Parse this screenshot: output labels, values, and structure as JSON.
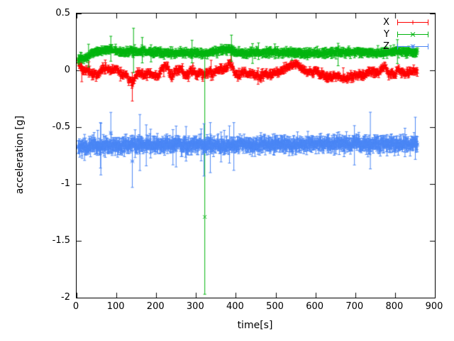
{
  "chart_data": {
    "type": "scatter",
    "style": "points-with-yerrorbars",
    "title": "",
    "xlabel": "time[s]",
    "ylabel": "acceleration [g]",
    "xlim": [
      0,
      900
    ],
    "ylim": [
      -2,
      0.5
    ],
    "xticks": [
      0,
      100,
      200,
      300,
      400,
      500,
      600,
      700,
      800,
      900
    ],
    "yticks": [
      -2,
      -1.5,
      -1,
      -0.5,
      0,
      0.5
    ],
    "grid": false,
    "legend": {
      "position": "top-right",
      "entries": [
        {
          "label": "X",
          "color": "#ff0000",
          "marker": "plus"
        },
        {
          "label": "Y",
          "color": "#00b40e",
          "marker": "cross"
        },
        {
          "label": "Z",
          "color": "#4a86f5",
          "marker": "asterisk"
        }
      ]
    },
    "series": [
      {
        "name": "X",
        "color": "#ff0000",
        "marker": "plus",
        "x_range": [
          4,
          856
        ],
        "x_step": 1,
        "seed": 11,
        "noise": 0.03,
        "err": 0.02,
        "spike_prob": 0.01,
        "spike_mul": 2,
        "trend": [
          [
            4,
            0.08
          ],
          [
            10,
            0.04
          ],
          [
            18,
            0.0
          ],
          [
            30,
            -0.01
          ],
          [
            45,
            -0.03
          ],
          [
            55,
            -0.04
          ],
          [
            65,
            0.02
          ],
          [
            75,
            0.03
          ],
          [
            85,
            0.0
          ],
          [
            95,
            0.02
          ],
          [
            105,
            0.0
          ],
          [
            115,
            -0.03
          ],
          [
            125,
            -0.04
          ],
          [
            135,
            -0.1
          ],
          [
            142,
            -0.11
          ],
          [
            150,
            -0.03
          ],
          [
            160,
            -0.02
          ],
          [
            172,
            -0.05
          ],
          [
            180,
            -0.03
          ],
          [
            190,
            -0.04
          ],
          [
            200,
            -0.06
          ],
          [
            210,
            -0.02
          ],
          [
            218,
            0.03
          ],
          [
            228,
            0.04
          ],
          [
            238,
            -0.06
          ],
          [
            246,
            -0.02
          ],
          [
            255,
            0.0
          ],
          [
            263,
            0.02
          ],
          [
            272,
            -0.05
          ],
          [
            282,
            -0.03
          ],
          [
            292,
            0.0
          ],
          [
            302,
            -0.04
          ],
          [
            312,
            -0.02
          ],
          [
            322,
            -0.04
          ],
          [
            332,
            -0.01
          ],
          [
            342,
            -0.03
          ],
          [
            352,
            0.0
          ],
          [
            362,
            0.02
          ],
          [
            372,
            0.0
          ],
          [
            383,
            0.05
          ],
          [
            390,
            0.06
          ],
          [
            398,
            -0.03
          ],
          [
            408,
            -0.04
          ],
          [
            418,
            -0.02
          ],
          [
            428,
            -0.03
          ],
          [
            438,
            -0.02
          ],
          [
            448,
            -0.04
          ],
          [
            458,
            -0.05
          ],
          [
            470,
            -0.04
          ],
          [
            482,
            -0.04
          ],
          [
            494,
            -0.03
          ],
          [
            506,
            -0.02
          ],
          [
            515,
            0.0
          ],
          [
            528,
            0.02
          ],
          [
            540,
            0.05
          ],
          [
            552,
            0.06
          ],
          [
            562,
            0.03
          ],
          [
            572,
            0.0
          ],
          [
            582,
            -0.01
          ],
          [
            592,
            -0.02
          ],
          [
            602,
            0.0
          ],
          [
            612,
            -0.03
          ],
          [
            625,
            -0.06
          ],
          [
            638,
            -0.06
          ],
          [
            650,
            -0.05
          ],
          [
            662,
            -0.06
          ],
          [
            675,
            -0.07
          ],
          [
            688,
            -0.06
          ],
          [
            700,
            -0.05
          ],
          [
            712,
            -0.04
          ],
          [
            724,
            -0.03
          ],
          [
            736,
            -0.01
          ],
          [
            748,
            -0.02
          ],
          [
            758,
            -0.03
          ],
          [
            768,
            0.02
          ],
          [
            776,
            0.03
          ],
          [
            784,
            -0.04
          ],
          [
            792,
            -0.02
          ],
          [
            800,
            -0.05
          ],
          [
            808,
            0.01
          ],
          [
            816,
            -0.01
          ],
          [
            828,
            -0.02
          ],
          [
            840,
            -0.01
          ],
          [
            856,
            -0.01
          ]
        ],
        "outliers": [
          {
            "x": 140,
            "y": -0.11,
            "lo": -0.27,
            "hi": -0.02
          },
          {
            "x": 13,
            "y": 0.02,
            "lo": -0.1,
            "hi": 0.1
          },
          {
            "x": 388,
            "y": 0.08,
            "lo": 0.0,
            "hi": 0.17
          }
        ]
      },
      {
        "name": "Y",
        "color": "#00b40e",
        "marker": "cross",
        "x_range": [
          4,
          856
        ],
        "x_step": 1,
        "seed": 23,
        "noise": 0.022,
        "err": 0.025,
        "spike_prob": 0.008,
        "spike_mul": 2,
        "trend": [
          [
            4,
            0.1
          ],
          [
            14,
            0.1
          ],
          [
            24,
            0.11
          ],
          [
            34,
            0.14
          ],
          [
            44,
            0.16
          ],
          [
            60,
            0.17
          ],
          [
            75,
            0.18
          ],
          [
            90,
            0.18
          ],
          [
            105,
            0.17
          ],
          [
            120,
            0.16
          ],
          [
            135,
            0.17
          ],
          [
            150,
            0.16
          ],
          [
            165,
            0.17
          ],
          [
            180,
            0.16
          ],
          [
            200,
            0.16
          ],
          [
            220,
            0.155
          ],
          [
            240,
            0.15
          ],
          [
            260,
            0.155
          ],
          [
            280,
            0.16
          ],
          [
            300,
            0.15
          ],
          [
            320,
            0.155
          ],
          [
            340,
            0.165
          ],
          [
            360,
            0.175
          ],
          [
            380,
            0.185
          ],
          [
            392,
            0.18
          ],
          [
            402,
            0.16
          ],
          [
            420,
            0.15
          ],
          [
            440,
            0.155
          ],
          [
            460,
            0.16
          ],
          [
            480,
            0.155
          ],
          [
            500,
            0.16
          ],
          [
            520,
            0.158
          ],
          [
            540,
            0.155
          ],
          [
            560,
            0.152
          ],
          [
            580,
            0.15
          ],
          [
            600,
            0.15
          ],
          [
            620,
            0.152
          ],
          [
            640,
            0.155
          ],
          [
            660,
            0.158
          ],
          [
            680,
            0.16
          ],
          [
            700,
            0.158
          ],
          [
            720,
            0.155
          ],
          [
            740,
            0.152
          ],
          [
            760,
            0.15
          ],
          [
            780,
            0.155
          ],
          [
            800,
            0.165
          ],
          [
            812,
            0.17
          ],
          [
            824,
            0.16
          ],
          [
            840,
            0.158
          ],
          [
            856,
            0.158
          ]
        ],
        "outliers": [
          {
            "x": 322,
            "y": -1.29,
            "lo": -1.97,
            "hi": 0.16
          },
          {
            "x": 143,
            "y": 0.18,
            "lo": -0.02,
            "hi": 0.37
          },
          {
            "x": 86,
            "y": 0.2,
            "lo": 0.08,
            "hi": 0.3
          },
          {
            "x": 389,
            "y": 0.2,
            "lo": 0.08,
            "hi": 0.31
          },
          {
            "x": 30,
            "y": 0.13,
            "lo": 0.03,
            "hi": 0.23
          },
          {
            "x": 806,
            "y": 0.17,
            "lo": 0.06,
            "hi": 0.27
          }
        ]
      },
      {
        "name": "Z",
        "color": "#4a86f5",
        "marker": "asterisk",
        "x_range": [
          4,
          856
        ],
        "x_step": 1,
        "seed": 37,
        "noise": 0.045,
        "err": 0.045,
        "spike_prob": 0.02,
        "spike_mul": 2.5,
        "trend": [
          [
            4,
            -0.68
          ],
          [
            20,
            -0.67
          ],
          [
            40,
            -0.66
          ],
          [
            60,
            -0.665
          ],
          [
            80,
            -0.67
          ],
          [
            100,
            -0.665
          ],
          [
            120,
            -0.66
          ],
          [
            140,
            -0.655
          ],
          [
            160,
            -0.65
          ],
          [
            180,
            -0.655
          ],
          [
            200,
            -0.66
          ],
          [
            220,
            -0.655
          ],
          [
            240,
            -0.65
          ],
          [
            260,
            -0.655
          ],
          [
            280,
            -0.66
          ],
          [
            300,
            -0.655
          ],
          [
            320,
            -0.65
          ],
          [
            340,
            -0.655
          ],
          [
            360,
            -0.65
          ],
          [
            380,
            -0.66
          ],
          [
            400,
            -0.658
          ],
          [
            420,
            -0.655
          ],
          [
            440,
            -0.652
          ],
          [
            460,
            -0.65
          ],
          [
            480,
            -0.653
          ],
          [
            500,
            -0.65
          ],
          [
            520,
            -0.653
          ],
          [
            540,
            -0.655
          ],
          [
            560,
            -0.652
          ],
          [
            580,
            -0.65
          ],
          [
            600,
            -0.648
          ],
          [
            620,
            -0.65
          ],
          [
            640,
            -0.648
          ],
          [
            660,
            -0.65
          ],
          [
            680,
            -0.649
          ],
          [
            700,
            -0.65
          ],
          [
            720,
            -0.647
          ],
          [
            740,
            -0.645
          ],
          [
            760,
            -0.648
          ],
          [
            780,
            -0.65
          ],
          [
            800,
            -0.647
          ],
          [
            820,
            -0.645
          ],
          [
            840,
            -0.646
          ],
          [
            856,
            -0.645
          ]
        ],
        "outliers": [
          {
            "x": 86,
            "y": -0.55,
            "lo": -0.73,
            "hi": -0.37
          },
          {
            "x": 140,
            "y": -0.8,
            "lo": -1.03,
            "hi": -0.57
          },
          {
            "x": 60,
            "y": -0.66,
            "lo": -0.86,
            "hi": -0.46
          },
          {
            "x": 320,
            "y": -0.7,
            "lo": -0.93,
            "hi": -0.47
          },
          {
            "x": 336,
            "y": -0.68,
            "lo": -0.9,
            "hi": -0.46
          },
          {
            "x": 395,
            "y": -0.67,
            "lo": -0.88,
            "hi": -0.46
          },
          {
            "x": 175,
            "y": -0.66,
            "lo": -0.84,
            "hi": -0.48
          },
          {
            "x": 250,
            "y": -0.67,
            "lo": -0.85,
            "hi": -0.49
          }
        ]
      }
    ]
  }
}
